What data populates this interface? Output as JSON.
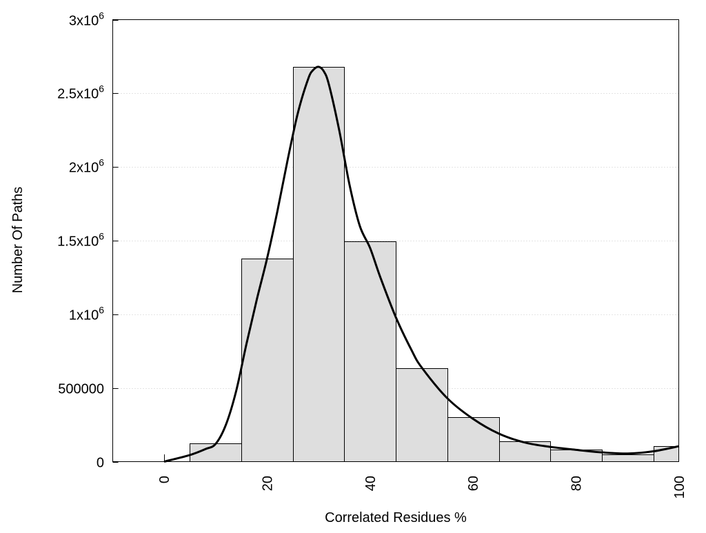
{
  "chart_data": {
    "type": "bar",
    "title": "",
    "xlabel": "Correlated Residues %",
    "ylabel": "Number Of Paths",
    "xlim": [
      -10,
      100
    ],
    "ylim": [
      0,
      3000000
    ],
    "grid": "horizontal dotted",
    "bin_width": 10,
    "x_ticks": [
      {
        "value": 0,
        "label": "0"
      },
      {
        "value": 20,
        "label": "20"
      },
      {
        "value": 40,
        "label": "40"
      },
      {
        "value": 60,
        "label": "60"
      },
      {
        "value": 80,
        "label": "80"
      },
      {
        "value": 100,
        "label": "100"
      }
    ],
    "y_ticks": [
      {
        "value": 0,
        "label": "0",
        "exp": ""
      },
      {
        "value": 500000,
        "label": "500000",
        "exp": ""
      },
      {
        "value": 1000000,
        "label": "1x10",
        "exp": "6"
      },
      {
        "value": 1500000,
        "label": "1.5x10",
        "exp": "6"
      },
      {
        "value": 2000000,
        "label": "2x10",
        "exp": "6"
      },
      {
        "value": 2500000,
        "label": "2.5x10",
        "exp": "6"
      },
      {
        "value": 3000000,
        "label": "3x10",
        "exp": "6"
      }
    ],
    "bars": {
      "x": [
        10,
        20,
        30,
        40,
        50,
        60,
        70,
        80,
        90,
        100
      ],
      "values": [
        122000,
        1380000,
        2680000,
        1497000,
        632000,
        304000,
        140000,
        84000,
        51000,
        103000
      ],
      "color": "#dedede"
    },
    "curve": {
      "x": [
        0,
        5,
        8,
        10,
        12,
        14,
        16,
        18,
        20,
        22,
        24,
        26,
        28,
        29,
        30,
        31,
        32,
        34,
        36,
        38,
        40,
        42,
        45,
        48,
        50,
        55,
        60,
        65,
        70,
        75,
        80,
        85,
        90,
        95,
        100
      ],
      "values": [
        0,
        45000,
        85000,
        120000,
        250000,
        480000,
        800000,
        1100000,
        1380000,
        1700000,
        2050000,
        2370000,
        2600000,
        2660000,
        2680000,
        2650000,
        2560000,
        2250000,
        1880000,
        1600000,
        1450000,
        1250000,
        980000,
        760000,
        640000,
        430000,
        290000,
        190000,
        130000,
        100000,
        80000,
        63000,
        55000,
        70000,
        105000
      ],
      "color": "#000000"
    }
  }
}
